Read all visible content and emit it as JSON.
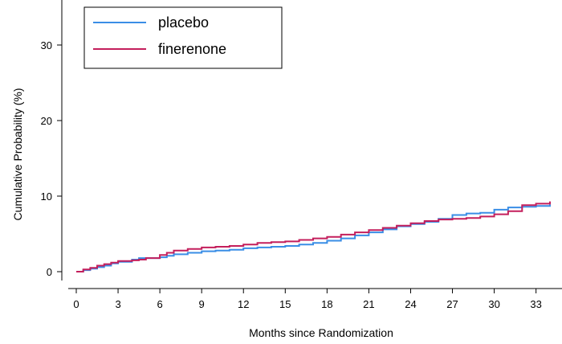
{
  "chart_data": {
    "type": "line",
    "step": true,
    "title": "",
    "xlabel": "Months since Randomization",
    "ylabel": "Cumulative Probability (%)",
    "xlim": [
      0,
      34
    ],
    "ylim": [
      0,
      35
    ],
    "xticks": [
      0,
      3,
      6,
      9,
      12,
      15,
      18,
      21,
      24,
      27,
      30,
      33
    ],
    "yticks": [
      0,
      10,
      20,
      30
    ],
    "grid": false,
    "legend_position": "top-left",
    "series": [
      {
        "name": "placebo",
        "color": "#3a8ee6",
        "x": [
          0,
          0.5,
          1,
          1.5,
          2,
          2.5,
          3,
          4,
          4.5,
          6,
          6.5,
          7,
          8,
          9,
          10,
          11,
          12,
          13,
          14,
          15,
          16,
          17,
          18,
          19,
          20,
          21,
          22,
          23,
          24,
          25,
          26,
          27,
          28,
          29,
          30,
          31,
          32,
          33,
          34
        ],
        "y": [
          0,
          0.2,
          0.4,
          0.6,
          0.8,
          1.1,
          1.3,
          1.6,
          1.8,
          1.9,
          2.1,
          2.3,
          2.5,
          2.7,
          2.8,
          2.9,
          3.1,
          3.2,
          3.3,
          3.4,
          3.6,
          3.8,
          4.1,
          4.4,
          4.8,
          5.2,
          5.6,
          6.0,
          6.3,
          6.6,
          7.0,
          7.5,
          7.7,
          7.8,
          8.2,
          8.5,
          8.6,
          8.7,
          8.9
        ]
      },
      {
        "name": "finerenone",
        "color": "#c41f5c",
        "x": [
          0,
          0.5,
          1,
          1.5,
          2,
          2.5,
          3,
          4,
          4.5,
          5,
          6,
          6.5,
          7,
          8,
          9,
          10,
          11,
          12,
          13,
          14,
          15,
          16,
          17,
          18,
          19,
          20,
          21,
          22,
          23,
          24,
          25,
          26,
          27,
          28,
          29,
          30,
          31,
          32,
          33,
          34
        ],
        "y": [
          0,
          0.3,
          0.5,
          0.8,
          1.0,
          1.2,
          1.4,
          1.5,
          1.6,
          1.8,
          2.2,
          2.5,
          2.8,
          3.0,
          3.2,
          3.3,
          3.4,
          3.6,
          3.8,
          3.9,
          4.0,
          4.2,
          4.4,
          4.6,
          4.9,
          5.2,
          5.5,
          5.8,
          6.1,
          6.4,
          6.7,
          6.9,
          7.0,
          7.1,
          7.3,
          7.6,
          8.0,
          8.8,
          9.0,
          9.3
        ]
      }
    ]
  }
}
